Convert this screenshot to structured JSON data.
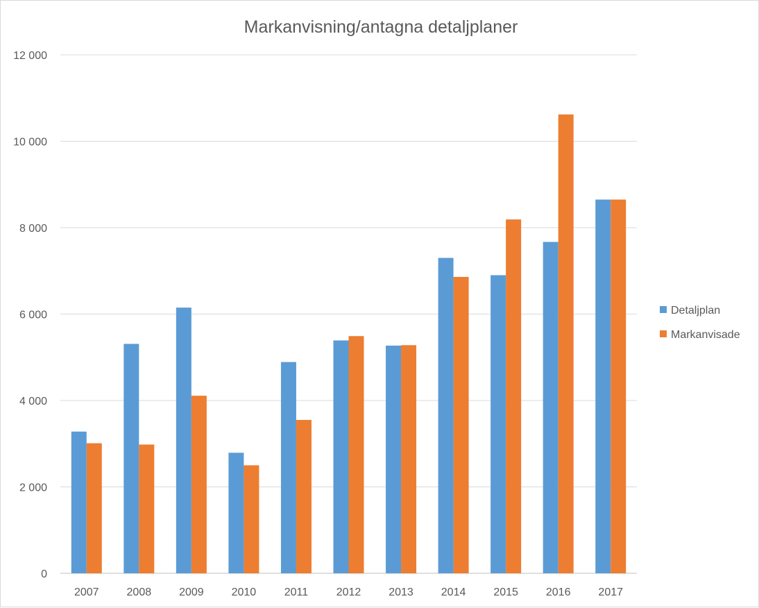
{
  "chart_data": {
    "type": "bar",
    "title": "Markanvisning/antagna detaljplaner",
    "xlabel": "",
    "ylabel": "",
    "categories": [
      "2007",
      "2008",
      "2009",
      "2010",
      "2011",
      "2012",
      "2013",
      "2014",
      "2015",
      "2016",
      "2017"
    ],
    "series": [
      {
        "name": "Detaljplan",
        "color": "#5b9bd5",
        "values": [
          3280,
          5310,
          6150,
          2790,
          4890,
          5390,
          5270,
          7300,
          6900,
          7670,
          8650
        ]
      },
      {
        "name": "Markanvisade",
        "color": "#ed7d31",
        "values": [
          3010,
          2980,
          4110,
          2500,
          3550,
          5490,
          5280,
          6860,
          8190,
          10620,
          8650
        ]
      }
    ],
    "ylim": [
      0,
      12000
    ],
    "yticks": [
      0,
      2000,
      4000,
      6000,
      8000,
      10000,
      12000
    ],
    "ytick_labels": [
      "0",
      "2 000",
      "4 000",
      "6 000",
      "8 000",
      "10 000",
      "12 000"
    ],
    "grid": true,
    "legend_position": "right"
  }
}
